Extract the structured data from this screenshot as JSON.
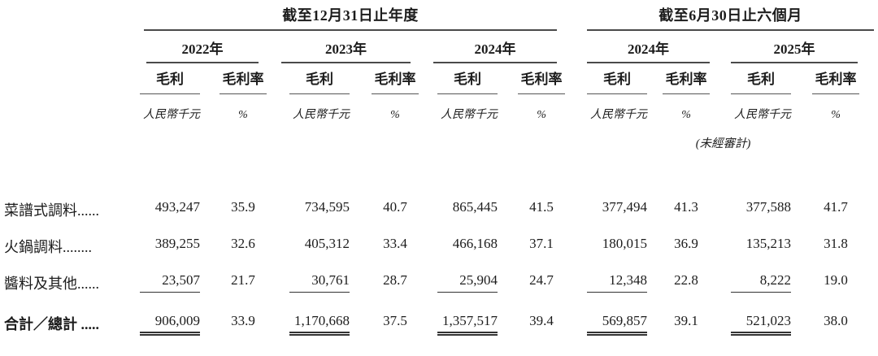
{
  "page": {
    "background": "#ffffff",
    "text_color": "#1c1c1c",
    "rule_color": "#4a4a4a"
  },
  "table": {
    "period_groups": [
      {
        "label": "截至12月31日止年度",
        "years": [
          "2022年",
          "2023年",
          "2024年"
        ]
      },
      {
        "label": "截至6月30日止六個月",
        "years": [
          "2024年",
          "2025年"
        ]
      }
    ],
    "column_headers": {
      "gross_profit": "毛利",
      "gross_margin": "毛利率"
    },
    "unit_row": {
      "amount_unit": "人民幣千元",
      "percent_unit": "%"
    },
    "unaudited_note": "(未經審計)",
    "rows": [
      {
        "label": "菜譜式調料",
        "leader": "......",
        "values": [
          "493,247",
          "35.9",
          "734,595",
          "40.7",
          "865,445",
          "41.5",
          "377,494",
          "41.3",
          "377,588",
          "41.7"
        ]
      },
      {
        "label": "火鍋調料",
        "leader": "........",
        "values": [
          "389,255",
          "32.6",
          "405,312",
          "33.4",
          "466,168",
          "37.1",
          "180,015",
          "36.9",
          "135,213",
          "31.8"
        ]
      },
      {
        "label": "醬料及其他",
        "leader": "......",
        "values": [
          "23,507",
          "21.7",
          "30,761",
          "28.7",
          "25,904",
          "24.7",
          "12,348",
          "22.8",
          "8,222",
          "19.0"
        ]
      },
      {
        "label": "合計／總計",
        "leader": " .....",
        "values": [
          "906,009",
          "33.9",
          "1,170,668",
          "37.5",
          "1,357,517",
          "39.4",
          "569,857",
          "39.1",
          "521,023",
          "38.0"
        ]
      }
    ]
  }
}
